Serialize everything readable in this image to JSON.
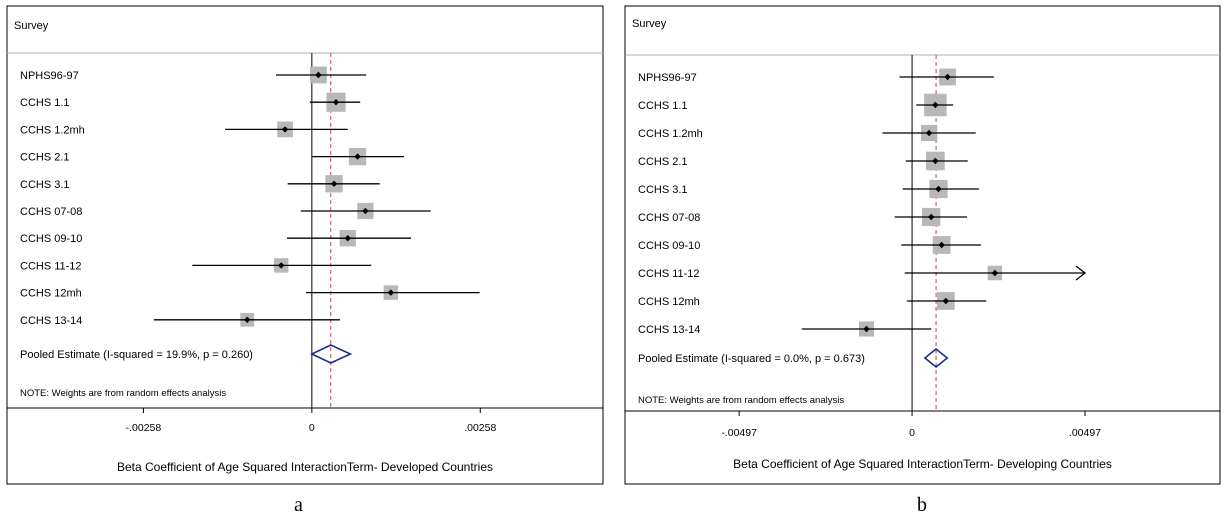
{
  "chart_data": [
    {
      "type": "forest",
      "caption": "a",
      "header": "Survey",
      "xlabel": "Beta Coefficient of Age Squared InteractionTerm- Developed Countries",
      "tick_labels": [
        "-.00258",
        "0",
        ".00258"
      ],
      "tick_values": [
        -0.00258,
        0,
        0.00258
      ],
      "xlim": [
        -0.00467,
        0.00446
      ],
      "pooled_label": "Pooled Estimate  (I-squared = 19.9%, p = 0.260)",
      "pooled": {
        "estimate": 0.00029,
        "lower": 0.0,
        "upper": 0.00059
      },
      "note": "NOTE: Weights are from random effects analysis",
      "studies": [
        {
          "label": "NPHS96-97",
          "estimate": 0.0001,
          "lower": -0.00055,
          "upper": 0.00083,
          "weight": 1.0
        },
        {
          "label": "CCHS 1.1",
          "estimate": 0.00037,
          "lower": -3e-05,
          "upper": 0.00074,
          "weight": 1.5
        },
        {
          "label": "CCHS 1.2mh",
          "estimate": -0.00041,
          "lower": -0.00133,
          "upper": 0.00055,
          "weight": 0.8
        },
        {
          "label": "CCHS 2.1",
          "estimate": 0.0007,
          "lower": 0.0,
          "upper": 0.00141,
          "weight": 1.1
        },
        {
          "label": "CCHS 3.1",
          "estimate": 0.00034,
          "lower": -0.00037,
          "upper": 0.00104,
          "weight": 1.1
        },
        {
          "label": "CCHS 07-08",
          "estimate": 0.00082,
          "lower": -0.00017,
          "upper": 0.00182,
          "weight": 0.9
        },
        {
          "label": "CCHS 09-10",
          "estimate": 0.00055,
          "lower": -0.00038,
          "upper": 0.00152,
          "weight": 0.9
        },
        {
          "label": "CCHS 11-12",
          "estimate": -0.00047,
          "lower": -0.00183,
          "upper": 0.00091,
          "weight": 0.6
        },
        {
          "label": "CCHS 12mh",
          "estimate": 0.00121,
          "lower": -9e-05,
          "upper": 0.00257,
          "weight": 0.6
        },
        {
          "label": "CCHS 13-14",
          "estimate": -0.00099,
          "lower": -0.00242,
          "upper": 0.00043,
          "weight": 0.5
        }
      ]
    },
    {
      "type": "forest",
      "caption": "b",
      "header": "Survey",
      "xlabel": "Beta Coefficient of Age Squared InteractionTerm- Developing Countries",
      "tick_labels": [
        "-.00497",
        "0",
        ".00497"
      ],
      "tick_values": [
        -0.00497,
        0,
        0.00497
      ],
      "xlim": [
        -0.00825,
        0.00885
      ],
      "pooled_label": "Pooled Estimate  (I-squared = 0.0%, p = 0.673)",
      "pooled": {
        "estimate": 0.00069,
        "lower": 0.00037,
        "upper": 0.00101
      },
      "note": "NOTE: Weights are from random effects analysis",
      "studies": [
        {
          "label": "NPHS96-97",
          "estimate": 0.00102,
          "lower": -0.00036,
          "upper": 0.00235,
          "weight": 1.0
        },
        {
          "label": "CCHS 1.1",
          "estimate": 0.00067,
          "lower": 0.00012,
          "upper": 0.00118,
          "weight": 2.4
        },
        {
          "label": "CCHS 1.2mh",
          "estimate": 0.00049,
          "lower": -0.00085,
          "upper": 0.00183,
          "weight": 0.9
        },
        {
          "label": "CCHS 2.1",
          "estimate": 0.00067,
          "lower": -0.00018,
          "upper": 0.0016,
          "weight": 1.4
        },
        {
          "label": "CCHS 3.1",
          "estimate": 0.00076,
          "lower": -0.00027,
          "upper": 0.00192,
          "weight": 1.3
        },
        {
          "label": "CCHS 07-08",
          "estimate": 0.00055,
          "lower": -0.0005,
          "upper": 0.00158,
          "weight": 1.3
        },
        {
          "label": "CCHS 09-10",
          "estimate": 0.00085,
          "lower": -0.00031,
          "upper": 0.00198,
          "weight": 1.2
        },
        {
          "label": "CCHS 11-12",
          "estimate": 0.00238,
          "lower": -0.00021,
          "upper": 0.00497,
          "weight": 0.6,
          "arrow_right": true
        },
        {
          "label": "CCHS 12mh",
          "estimate": 0.00097,
          "lower": -0.00015,
          "upper": 0.00213,
          "weight": 1.2
        },
        {
          "label": "CCHS 13-14",
          "estimate": -0.00131,
          "lower": -0.00317,
          "upper": 0.00055,
          "weight": 0.7
        }
      ]
    }
  ]
}
